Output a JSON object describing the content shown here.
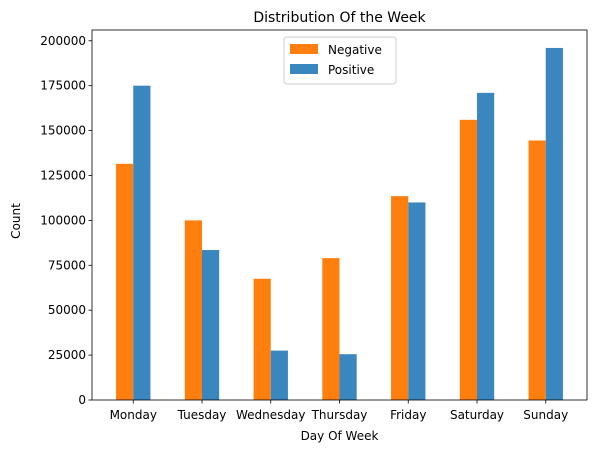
{
  "chart_data": {
    "type": "bar",
    "title": "Distribution Of the Week",
    "xlabel": "Day Of Week",
    "ylabel": "Count",
    "categories": [
      "Monday",
      "Tuesday",
      "Wednesday",
      "Thursday",
      "Friday",
      "Saturday",
      "Sunday"
    ],
    "series": [
      {
        "name": "Negative",
        "color": "#ff7f0e",
        "values": [
          131500,
          100000,
          67500,
          79000,
          113500,
          156000,
          144500
        ]
      },
      {
        "name": "Positive",
        "color": "#3a87c0",
        "values": [
          175000,
          83500,
          27500,
          25500,
          110000,
          171000,
          196000
        ]
      }
    ],
    "ylim": [
      0,
      206000
    ],
    "yticks": [
      0,
      25000,
      50000,
      75000,
      100000,
      125000,
      150000,
      175000,
      200000
    ],
    "ytick_labels": [
      "0",
      "25000",
      "50000",
      "75000",
      "100000",
      "125000",
      "150000",
      "175000",
      "200000"
    ],
    "grid": false,
    "legend_position": "top-center"
  }
}
